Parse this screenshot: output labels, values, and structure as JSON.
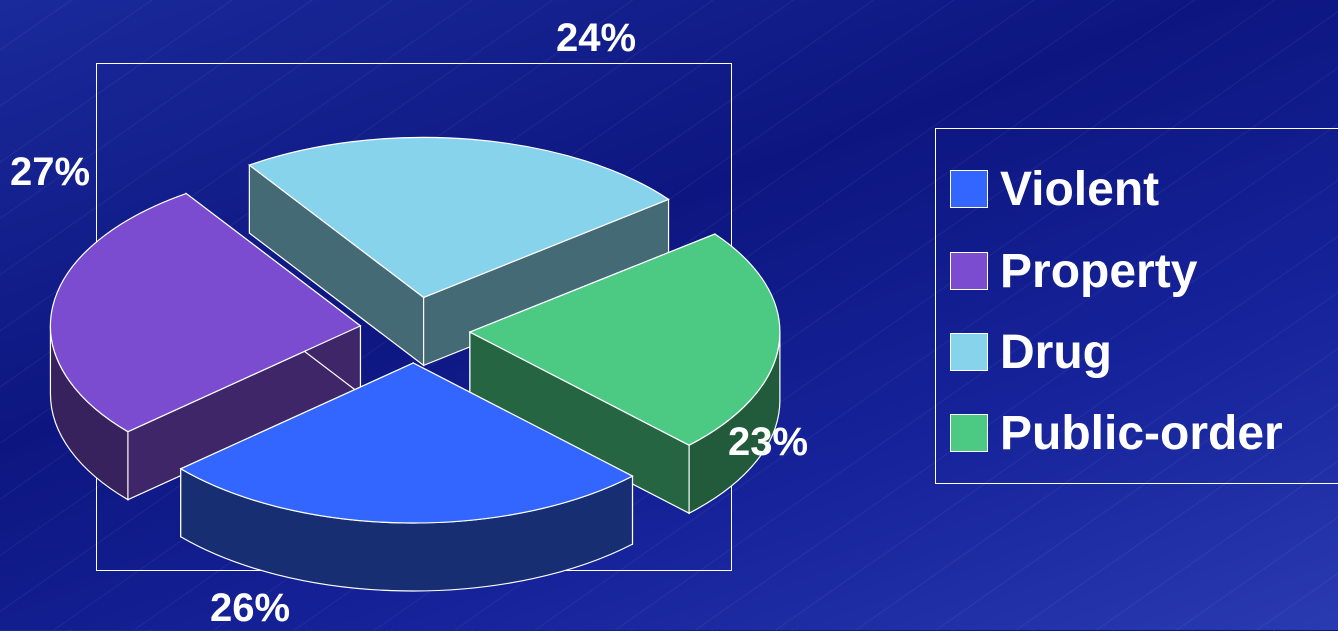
{
  "chart_data": {
    "type": "pie",
    "style": "3d-exploded",
    "categories": [
      "Violent",
      "Property",
      "Drug",
      "Public-order"
    ],
    "values": [
      26,
      27,
      24,
      23
    ],
    "value_labels": [
      "26%",
      "27%",
      "24%",
      "23%"
    ],
    "colors": [
      "#3366ff",
      "#7b4bd0",
      "#87d3ec",
      "#4cca84"
    ],
    "legend_position": "right"
  }
}
